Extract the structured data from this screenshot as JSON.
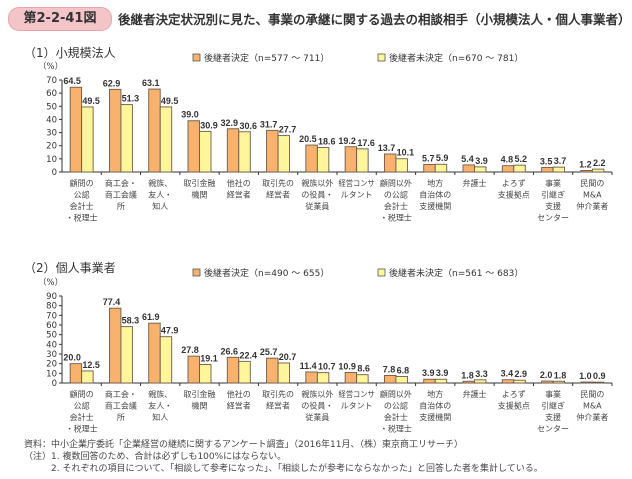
{
  "figure_label": "第2-2-41図",
  "title": "後継者決定状況別に見た、事業の承継に関する過去の相談相手（小規模法人・個人事業者）",
  "colors": {
    "decided": "#f9b26e",
    "undecided": "#fff59a",
    "badge": "#f3c4c8",
    "axis": "#333333"
  },
  "chart_data": [
    {
      "type": "bar",
      "title": "（1）小規模法人",
      "ylabel": "（%）",
      "ylim": [
        0,
        70
      ],
      "yticks": [
        0,
        10,
        20,
        30,
        40,
        50,
        60,
        70
      ],
      "legend_position": "top",
      "categories": [
        [
          "顧問の",
          "公認",
          "会計士",
          "・税理士"
        ],
        [
          "商工会・",
          "商工会議",
          "所"
        ],
        [
          "親族、",
          "友人・",
          "知人"
        ],
        [
          "取引金融",
          "機関"
        ],
        [
          "他社の",
          "経営者"
        ],
        [
          "取引先の",
          "経営者"
        ],
        [
          "親族以外",
          "の役員・",
          "従業員"
        ],
        [
          "経営コンサ",
          "ルタント"
        ],
        [
          "顧問以外",
          "の公認",
          "会計士",
          "・税理士"
        ],
        [
          "地方",
          "自治体の",
          "支援機関"
        ],
        [
          "弁護士"
        ],
        [
          "よろず",
          "支援拠点"
        ],
        [
          "事業",
          "引継ぎ",
          "支援",
          "センター"
        ],
        [
          "民間の",
          "M&A",
          "仲介業者"
        ]
      ],
      "series": [
        {
          "name": "後継者決定（n=577 ～ 711）",
          "values": [
            64.5,
            62.9,
            63.1,
            39.0,
            32.9,
            31.7,
            20.5,
            19.2,
            13.7,
            5.7,
            5.4,
            4.8,
            3.5,
            1.2
          ]
        },
        {
          "name": "後継者未決定（n=670 ～ 781）",
          "values": [
            49.5,
            51.3,
            49.5,
            30.9,
            30.6,
            27.7,
            18.6,
            17.6,
            10.1,
            5.9,
            3.9,
            5.2,
            3.7,
            2.2
          ]
        }
      ]
    },
    {
      "type": "bar",
      "title": "（2）個人事業者",
      "ylabel": "（%）",
      "ylim": [
        0,
        90
      ],
      "yticks": [
        0,
        10,
        20,
        30,
        40,
        50,
        60,
        70,
        80,
        90
      ],
      "legend_position": "top",
      "categories": [
        [
          "顧問の",
          "公認",
          "会計士",
          "・税理士"
        ],
        [
          "商工会・",
          "商工会議",
          "所"
        ],
        [
          "親族、",
          "友人・",
          "知人"
        ],
        [
          "取引金融",
          "機関"
        ],
        [
          "他社の",
          "経営者"
        ],
        [
          "取引先の",
          "経営者"
        ],
        [
          "親族以外",
          "の役員・",
          "従業員"
        ],
        [
          "経営コンサ",
          "ルタント"
        ],
        [
          "顧問以外",
          "の公認",
          "会計士",
          "・税理士"
        ],
        [
          "地方",
          "自治体の",
          "支援機関"
        ],
        [
          "弁護士"
        ],
        [
          "よろず",
          "支援拠点"
        ],
        [
          "事業",
          "引継ぎ",
          "支援",
          "センター"
        ],
        [
          "民間の",
          "M&A",
          "仲介業者"
        ]
      ],
      "series": [
        {
          "name": "後継者決定（n=490 ～ 655）",
          "values": [
            20.0,
            77.4,
            61.9,
            27.8,
            26.6,
            25.7,
            11.4,
            10.9,
            7.8,
            3.9,
            1.8,
            3.4,
            2.0,
            1.0
          ]
        },
        {
          "name": "後継者未決定（n=561 ～ 683）",
          "values": [
            12.5,
            58.3,
            47.9,
            19.1,
            22.4,
            20.7,
            10.7,
            8.6,
            6.8,
            3.9,
            3.3,
            2.9,
            1.8,
            0.9
          ]
        }
      ]
    }
  ],
  "footnotes": [
    "資料：中小企業庁委託「企業経営の継続に関するアンケート調査」（2016年11月、（株）東京商工リサーチ）",
    "（注）1. 複数回答のため、合計は必ずしも100%にはならない。",
    "　　　2. それぞれの項目について、「相談して参考になった」、「相談したが参考にならなかった」と回答した者を集計している。"
  ]
}
